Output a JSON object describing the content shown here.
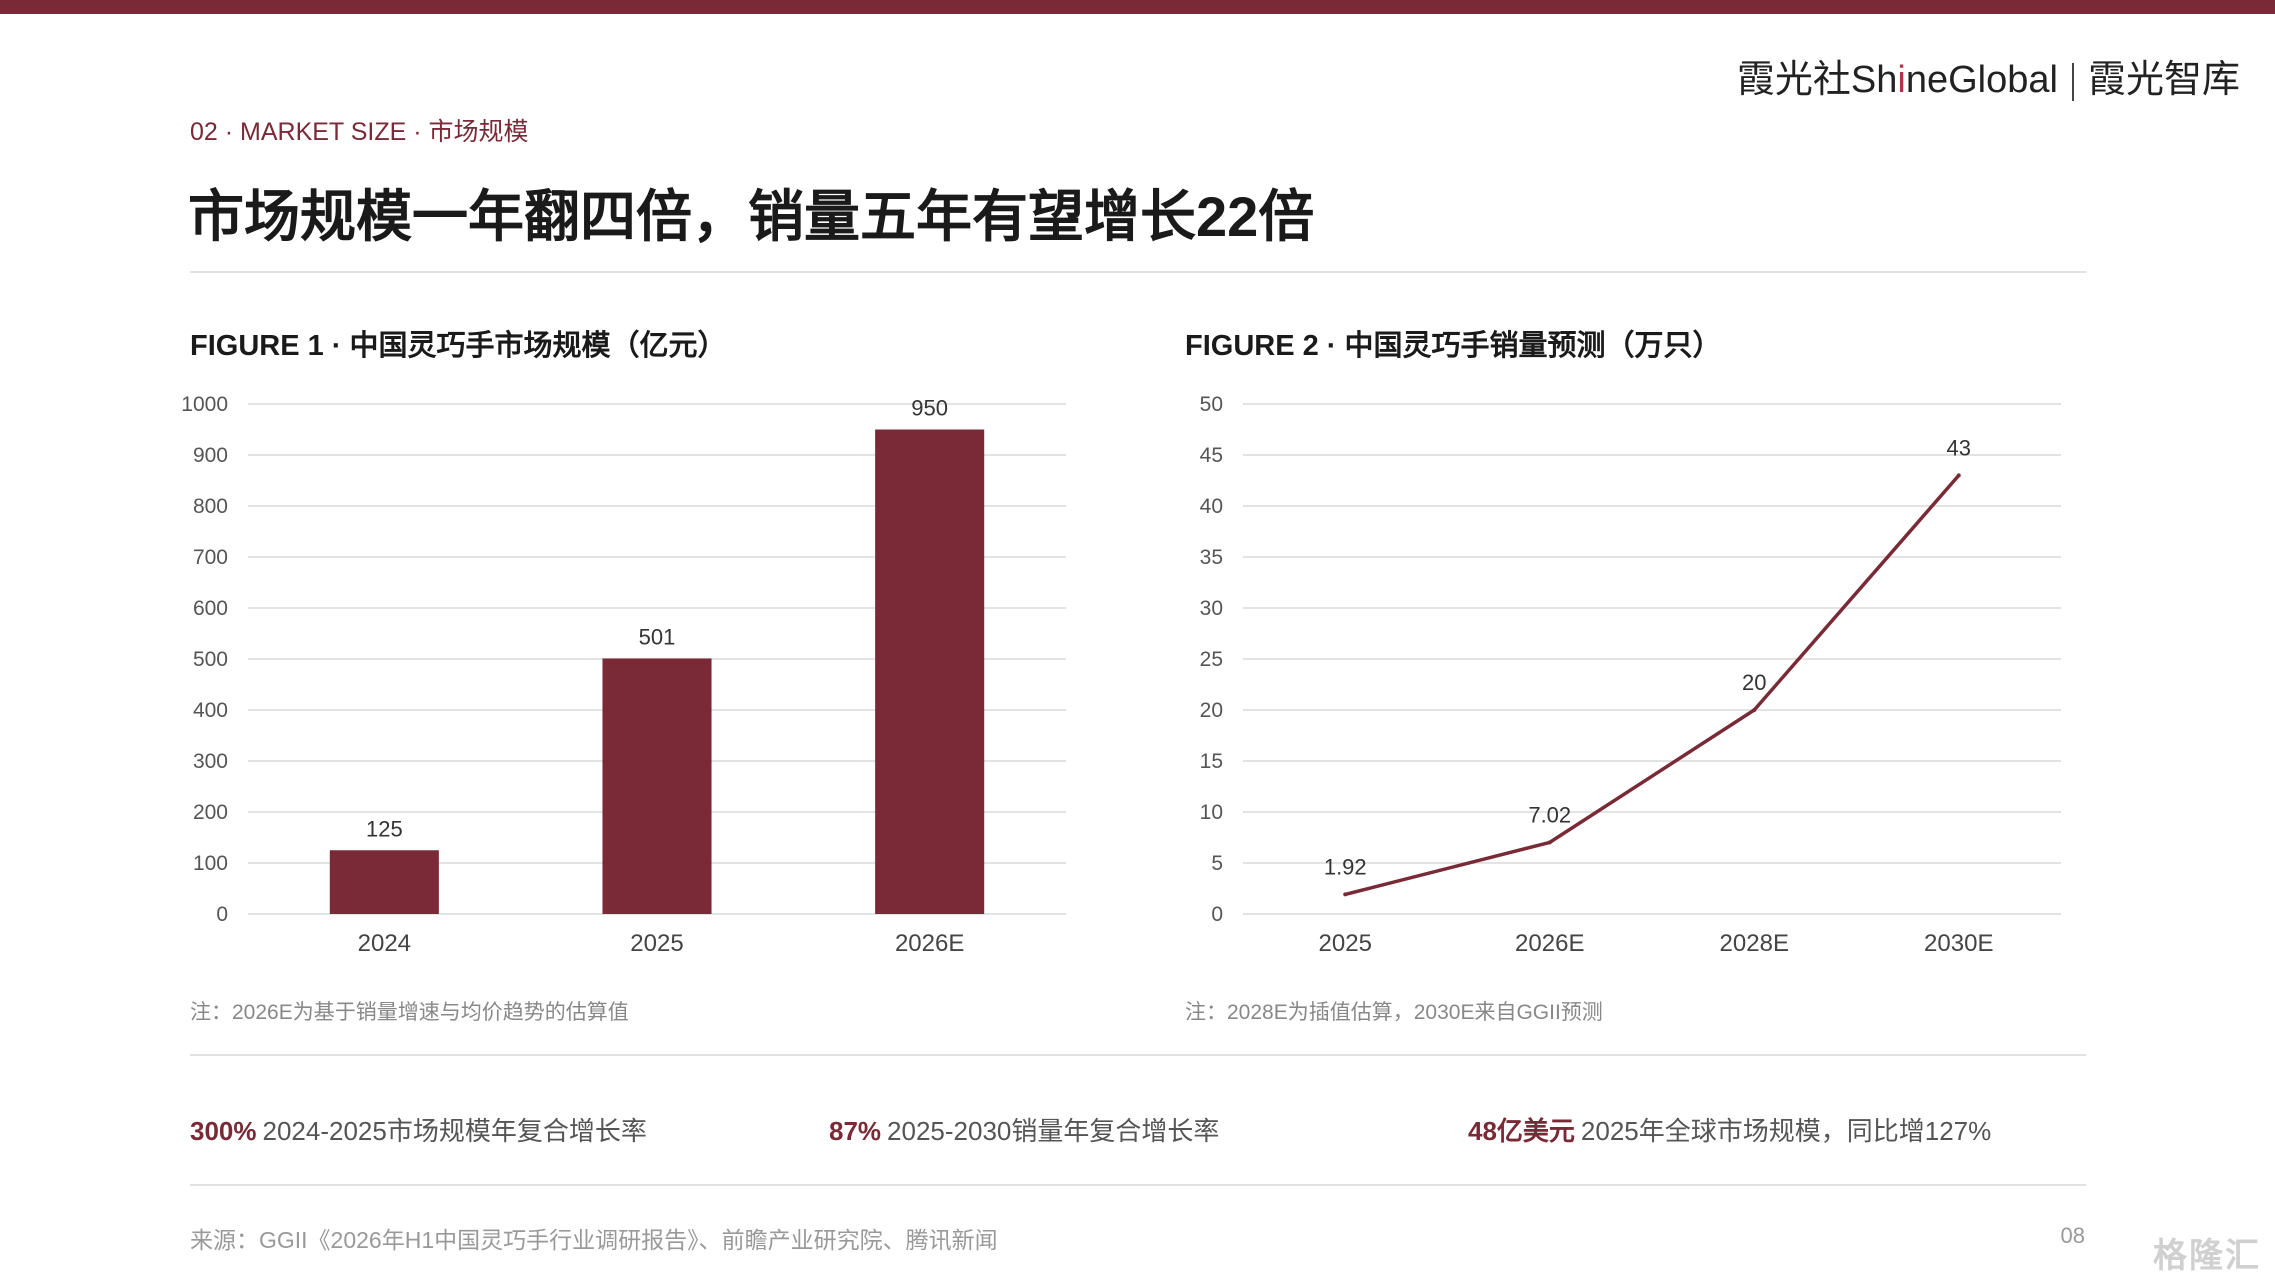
{
  "header": {
    "brand_left": "霞光社",
    "brand_en_pre": "Sh",
    "brand_en_i": "i",
    "brand_en_post": "neGlobal",
    "brand_right": "霞光智库",
    "section_label": "02 · MARKET SIZE · 市场规模",
    "headline": "市场规模一年翻四倍，销量五年有望增长22倍"
  },
  "figures": {
    "fig1_title": "FIGURE 1 · 中国灵巧手市场规模（亿元）",
    "fig1_note": "注：2026E为基于销量增速与均价趋势的估算值",
    "fig2_title": "FIGURE 2 · 中国灵巧手销量预测（万只）",
    "fig2_note": "注：2028E为插值估算，2030E来自GGII预测"
  },
  "stats": [
    {
      "value": "300%",
      "label": "2024-2025市场规模年复合增长率"
    },
    {
      "value": "87%",
      "label": "2025-2030销量年复合增长率"
    },
    {
      "value": "48亿美元",
      "label": "2025年全球市场规模，同比增127%"
    }
  ],
  "footer": {
    "source": "来源：GGII《2026年H1中国灵巧手行业调研报告》、前瞻产业研究院、腾讯新闻",
    "page_number": "08",
    "watermark": "格隆汇"
  },
  "colors": {
    "accent": "#7a2a36",
    "grid": "#e3e3e3"
  },
  "chart_data": [
    {
      "type": "bar",
      "title": "FIGURE 1 · 中国灵巧手市场规模（亿元）",
      "categories": [
        "2024",
        "2025",
        "2026E"
      ],
      "values": [
        125,
        501,
        950
      ],
      "data_labels": [
        "125",
        "501",
        "950"
      ],
      "ylim": [
        0,
        1000
      ],
      "yticks": [
        0,
        100,
        200,
        300,
        400,
        500,
        600,
        700,
        800,
        900,
        1000
      ],
      "grid": true,
      "color": "#7a2a36"
    },
    {
      "type": "line",
      "title": "FIGURE 2 · 中国灵巧手销量预测（万只）",
      "categories": [
        "2025",
        "2026E",
        "2028E",
        "2030E"
      ],
      "values": [
        1.92,
        7.02,
        20,
        43
      ],
      "data_labels": [
        "1.92",
        "7.02",
        "20",
        "43"
      ],
      "ylim": [
        0,
        50
      ],
      "yticks": [
        0,
        5,
        10,
        15,
        20,
        25,
        30,
        35,
        40,
        45,
        50
      ],
      "grid": true,
      "color": "#7a2a36"
    }
  ]
}
